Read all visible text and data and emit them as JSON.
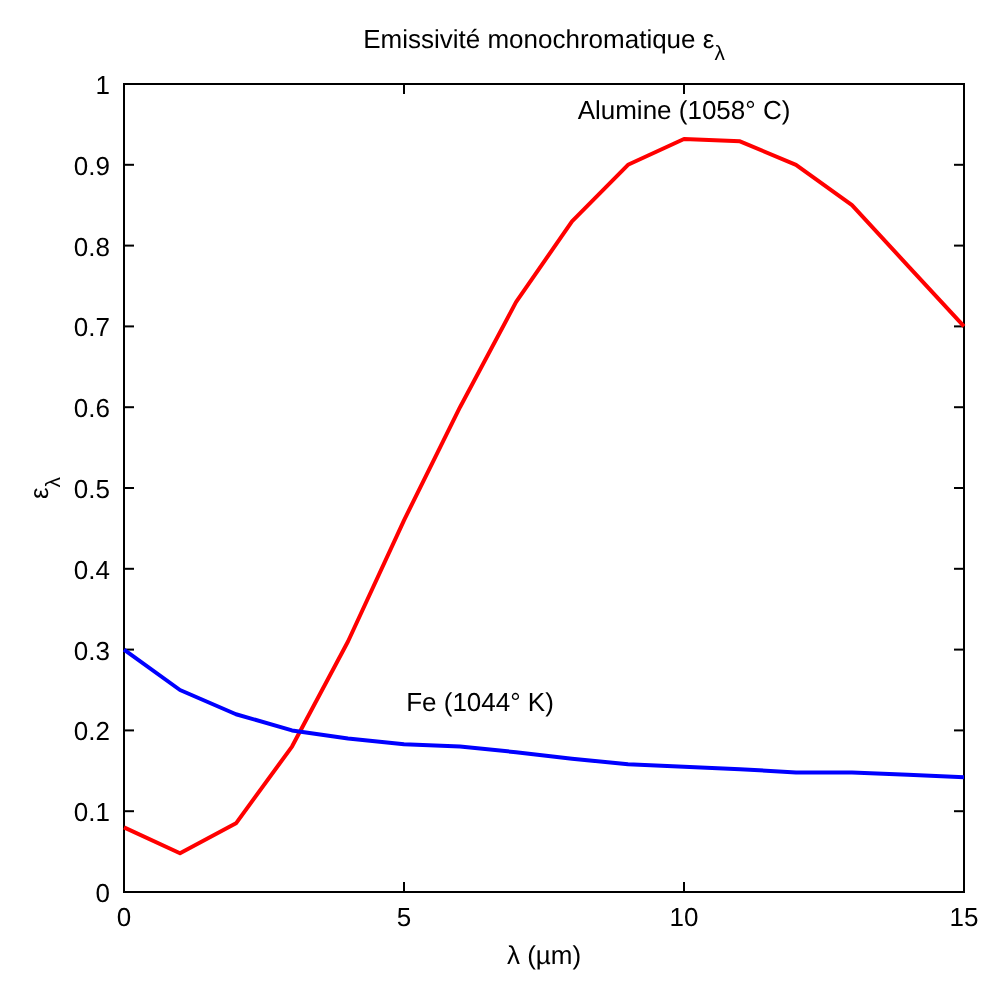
{
  "chart_data": {
    "type": "line",
    "title": "Emissivité monochromatique   ε$_{λ}$",
    "xlabel": "λ (µm)",
    "ylabel": "ε$_{λ}$",
    "x": [
      0,
      1,
      2,
      3,
      4,
      5,
      6,
      7,
      8,
      9,
      10,
      11,
      12,
      13,
      14,
      15
    ],
    "series": [
      {
        "name": "Alumine (1058° C)",
        "color": "#ff0000",
        "values": [
          0.08,
          0.048,
          0.085,
          0.18,
          0.31,
          0.46,
          0.6,
          0.73,
          0.83,
          0.9,
          0.932,
          0.929,
          0.9,
          0.85,
          0.775,
          0.7
        ]
      },
      {
        "name": "Fe (1044° K)",
        "color": "#0000ff",
        "values": [
          0.3,
          0.25,
          0.22,
          0.2,
          0.19,
          0.183,
          0.18,
          0.173,
          0.165,
          0.158,
          0.155,
          0.152,
          0.148,
          0.148,
          0.145,
          0.142
        ]
      }
    ],
    "xlim": [
      0,
      15
    ],
    "xticks": [
      0,
      5,
      10,
      15
    ],
    "ylim": [
      0,
      1
    ],
    "yticks": [
      0,
      0.1,
      0.2,
      0.3,
      0.4,
      0.5,
      0.6,
      0.7,
      0.8,
      0.9,
      1
    ],
    "grid": false,
    "marker": "none",
    "line_style": "solid"
  }
}
